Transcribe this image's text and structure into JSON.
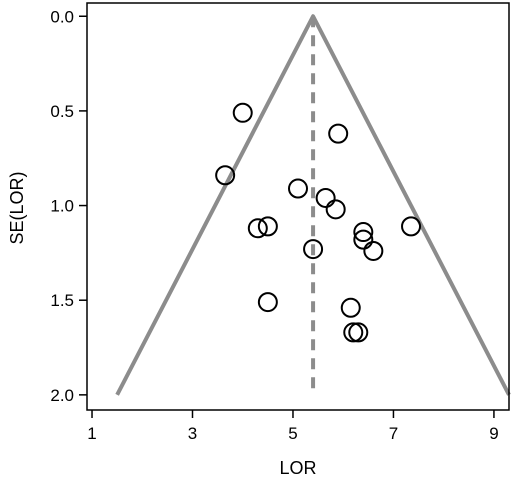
{
  "chart_data": {
    "type": "scatter",
    "subtype": "funnel-plot",
    "title": "",
    "xlabel": "LOR",
    "ylabel": "SE(LOR)",
    "xlim": [
      0.9,
      9.3
    ],
    "ylim": [
      2.08,
      -0.07
    ],
    "y_axis_inverted": true,
    "x_ticks": [
      1,
      3,
      5,
      7,
      9
    ],
    "x_tick_labels": [
      "1",
      "3",
      "5",
      "7",
      "9"
    ],
    "y_ticks": [
      0.0,
      0.5,
      1.0,
      1.5,
      2.0
    ],
    "y_tick_labels": [
      "0.0",
      "0.5",
      "1.0",
      "1.5",
      "2.0"
    ],
    "grid": false,
    "legend": "none",
    "center_line": {
      "x": 5.4,
      "style": "dashed",
      "y_from": 0.0,
      "y_to": 2.0
    },
    "funnel": {
      "apex": [
        5.4,
        0.0
      ],
      "left_end": [
        1.5,
        2.0
      ],
      "right_end": [
        9.3,
        2.0
      ]
    },
    "points": [
      {
        "x": 4.0,
        "y": 0.51
      },
      {
        "x": 5.9,
        "y": 0.62
      },
      {
        "x": 3.65,
        "y": 0.84
      },
      {
        "x": 5.1,
        "y": 0.91
      },
      {
        "x": 5.65,
        "y": 0.96
      },
      {
        "x": 5.85,
        "y": 1.02
      },
      {
        "x": 7.35,
        "y": 1.11
      },
      {
        "x": 4.3,
        "y": 1.12
      },
      {
        "x": 4.5,
        "y": 1.11
      },
      {
        "x": 6.4,
        "y": 1.14
      },
      {
        "x": 6.4,
        "y": 1.18
      },
      {
        "x": 5.4,
        "y": 1.23
      },
      {
        "x": 6.6,
        "y": 1.24
      },
      {
        "x": 4.5,
        "y": 1.51
      },
      {
        "x": 6.15,
        "y": 1.54
      },
      {
        "x": 6.2,
        "y": 1.67
      },
      {
        "x": 6.3,
        "y": 1.67
      }
    ],
    "colors": {
      "frame": "#000000",
      "funnel": "#8c8c8c",
      "center_line": "#8c8c8c",
      "points": "#000000"
    }
  }
}
